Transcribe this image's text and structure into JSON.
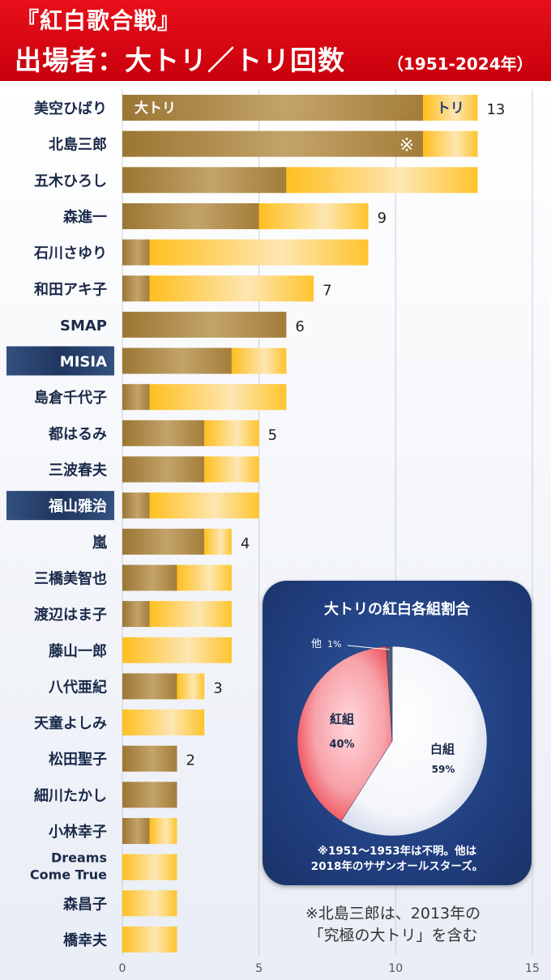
{
  "header": {
    "title_line1": "『紅白歌合戦』",
    "title_line2": "出場者：大トリ／トリ回数",
    "period": "（1951-2024年）"
  },
  "colors": {
    "header_red": "#d8000f",
    "oh_tori_gold": "#b08a3e",
    "tori_yellow": "#ffc52a",
    "highlight_label_bg": "#2b4474",
    "pie_panel": "#233f7e",
    "pie_red": "#e8111e",
    "pie_white": "#ffffff",
    "pie_other": "#555b6a"
  },
  "chart_data": [
    {
      "type": "bar",
      "orientation": "horizontal",
      "stacked": true,
      "legend_labels": {
        "oh_tori": "大トリ",
        "tori": "トリ"
      },
      "categories": [
        "美空ひばり",
        "北島三郎",
        "五木ひろし",
        "森進一",
        "石川さゆり",
        "和田アキ子",
        "SMAP",
        "MISIA",
        "島倉千代子",
        "都はるみ",
        "三波春夫",
        "福山雅治",
        "嵐",
        "三橋美智也",
        "渡辺はま子",
        "藤山一郎",
        "八代亜紀",
        "天童よしみ",
        "松田聖子",
        "細川たかし",
        "小林幸子",
        "Dreams\nCome True",
        "森昌子",
        "橋幸夫"
      ],
      "highlighted": [
        "MISIA",
        "福山雅治"
      ],
      "series": [
        {
          "name": "大トリ",
          "values": [
            11,
            11,
            6,
            5,
            1,
            1,
            6,
            4,
            1,
            3,
            3,
            1,
            3,
            2,
            1,
            0,
            2,
            0,
            2,
            2,
            1,
            0,
            0,
            0
          ]
        },
        {
          "name": "トリ",
          "values": [
            2,
            2,
            7,
            4,
            8,
            6,
            0,
            2,
            5,
            2,
            2,
            4,
            1,
            2,
            3,
            4,
            1,
            3,
            0,
            0,
            1,
            2,
            2,
            2
          ]
        }
      ],
      "total_labels": [
        {
          "category": "美空ひばり",
          "label": "13"
        },
        {
          "category": "森進一",
          "label": "9"
        },
        {
          "category": "和田アキ子",
          "label": "7"
        },
        {
          "category": "SMAP",
          "label": "6"
        },
        {
          "category": "都はるみ",
          "label": "5"
        },
        {
          "category": "嵐",
          "label": "4"
        },
        {
          "category": "八代亜紀",
          "label": "3"
        },
        {
          "category": "松田聖子",
          "label": "2"
        }
      ],
      "mark_note": {
        "category": "北島三郎",
        "text": "※"
      },
      "xlim": [
        0,
        15
      ],
      "xticks": [
        "0",
        "5",
        "10",
        "15"
      ],
      "grid": true
    },
    {
      "type": "pie",
      "title": "大トリの紅白各組割合",
      "slices": [
        {
          "label": "白組",
          "value": 59,
          "value_label": "59%",
          "color": "#ffffff"
        },
        {
          "label": "紅組",
          "value": 40,
          "value_label": "40%",
          "color": "#e8111e"
        },
        {
          "label": "他",
          "value": 1,
          "value_label": "1%",
          "color": "#555b6a"
        }
      ],
      "note": "※1951～1953年は不明。他は\n2018年のサザンオールスターズ。"
    }
  ],
  "footnote": "※北島三郎は、2013年の\n「究極の大トリ」を含む"
}
